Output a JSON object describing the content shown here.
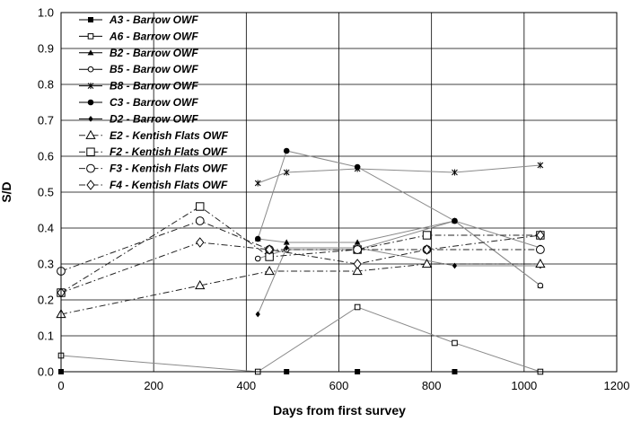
{
  "chart_data": {
    "type": "scatter",
    "xlabel": "Days from first survey",
    "ylabel": "S/D",
    "xlim": [
      0,
      1200
    ],
    "ylim": [
      0,
      1.0
    ],
    "x_ticks": [
      "0",
      "200",
      "400",
      "600",
      "800",
      "1000",
      "1200"
    ],
    "y_ticks": [
      "0.0",
      "0.1",
      "0.2",
      "0.3",
      "0.4",
      "0.5",
      "0.6",
      "0.7",
      "0.8",
      "0.9",
      "1.0"
    ],
    "grid": true,
    "legend_position": "top-left",
    "series": [
      {
        "name": "A3 - Barrow OWF",
        "marker": "square-filled",
        "dash": "solid",
        "x": [
          0,
          425,
          487,
          640,
          850,
          1035
        ],
        "y": [
          0.0,
          0.0,
          0.0,
          0.0,
          0.0,
          0.0
        ]
      },
      {
        "name": "A6 - Barrow OWF",
        "marker": "square-open-small",
        "dash": "solid",
        "x": [
          0,
          425,
          640,
          850,
          1035
        ],
        "y": [
          0.045,
          0.0,
          0.18,
          0.08,
          0.0
        ]
      },
      {
        "name": "B2 - Barrow OWF",
        "marker": "triangle-filled",
        "dash": "solid",
        "x": [
          425,
          487,
          640,
          850,
          1035
        ],
        "y": [
          0.37,
          0.36,
          0.36,
          0.42,
          0.24
        ]
      },
      {
        "name": "B5 - Barrow OWF",
        "marker": "circle-open-small",
        "dash": "solid",
        "x": [
          425,
          487,
          640,
          850,
          1035
        ],
        "y": [
          0.315,
          0.34,
          0.34,
          0.42,
          0.24
        ]
      },
      {
        "name": "B8 - Barrow OWF",
        "marker": "star",
        "dash": "solid",
        "x": [
          425,
          487,
          640,
          850,
          1035
        ],
        "y": [
          0.525,
          0.555,
          0.565,
          0.555,
          0.575
        ]
      },
      {
        "name": "C3 - Barrow OWF",
        "marker": "circle-filled",
        "dash": "solid",
        "x": [
          425,
          487,
          640,
          850,
          1035
        ],
        "y": [
          0.37,
          0.615,
          0.57,
          0.42,
          0.345
        ]
      },
      {
        "name": "D2 - Barrow OWF",
        "marker": "diamond-filled",
        "dash": "solid",
        "x": [
          425,
          487,
          640,
          850,
          1035
        ],
        "y": [
          0.16,
          0.345,
          0.345,
          0.295,
          0.295
        ]
      },
      {
        "name": "E2 - Kentish Flats OWF",
        "marker": "triangle-open",
        "dash": "dashdot",
        "x": [
          0,
          300,
          450,
          640,
          790,
          1035
        ],
        "y": [
          0.16,
          0.24,
          0.28,
          0.28,
          0.3,
          0.3
        ]
      },
      {
        "name": "F2 - Kentish Flats OWF",
        "marker": "square-open",
        "dash": "dashdot",
        "x": [
          0,
          300,
          450,
          640,
          790,
          1035
        ],
        "y": [
          0.22,
          0.46,
          0.32,
          0.34,
          0.38,
          0.38
        ]
      },
      {
        "name": "F3 - Kentish Flats OWF",
        "marker": "circle-open",
        "dash": "dashdot",
        "x": [
          0,
          300,
          450,
          640,
          790,
          1035
        ],
        "y": [
          0.28,
          0.42,
          0.34,
          0.34,
          0.34,
          0.34
        ]
      },
      {
        "name": "F4 - Kentish Flats OWF",
        "marker": "diamond-open",
        "dash": "dashdot",
        "x": [
          0,
          300,
          450,
          640,
          790,
          1035
        ],
        "y": [
          0.22,
          0.36,
          0.34,
          0.3,
          0.34,
          0.38
        ]
      }
    ]
  }
}
